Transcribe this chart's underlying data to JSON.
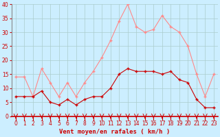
{
  "hours": [
    0,
    1,
    2,
    3,
    4,
    5,
    6,
    7,
    8,
    9,
    10,
    11,
    12,
    13,
    14,
    15,
    16,
    17,
    18,
    19,
    20,
    21,
    22,
    23
  ],
  "wind_avg": [
    7,
    7,
    7,
    9,
    5,
    4,
    6,
    4,
    6,
    7,
    7,
    10,
    15,
    17,
    16,
    16,
    16,
    15,
    16,
    13,
    12,
    6,
    3,
    3
  ],
  "wind_gust": [
    14,
    14,
    7,
    17,
    12,
    7,
    12,
    7,
    12,
    16,
    21,
    27,
    34,
    40,
    32,
    30,
    31,
    36,
    32,
    30,
    25,
    15,
    7,
    15
  ],
  "bg_color": "#cceeff",
  "grid_color": "#aacccc",
  "avg_color": "#cc0000",
  "gust_color": "#ff8888",
  "xlabel": "Vent moyen/en rafales ( km/h )",
  "xlabel_color": "#cc0000",
  "tick_color": "#cc0000",
  "spine_color": "#888888",
  "ylim": [
    0,
    40
  ],
  "yticks": [
    0,
    5,
    10,
    15,
    20,
    25,
    30,
    35,
    40
  ],
  "tick_fontsize": 5.5,
  "xlabel_fontsize": 6.5
}
